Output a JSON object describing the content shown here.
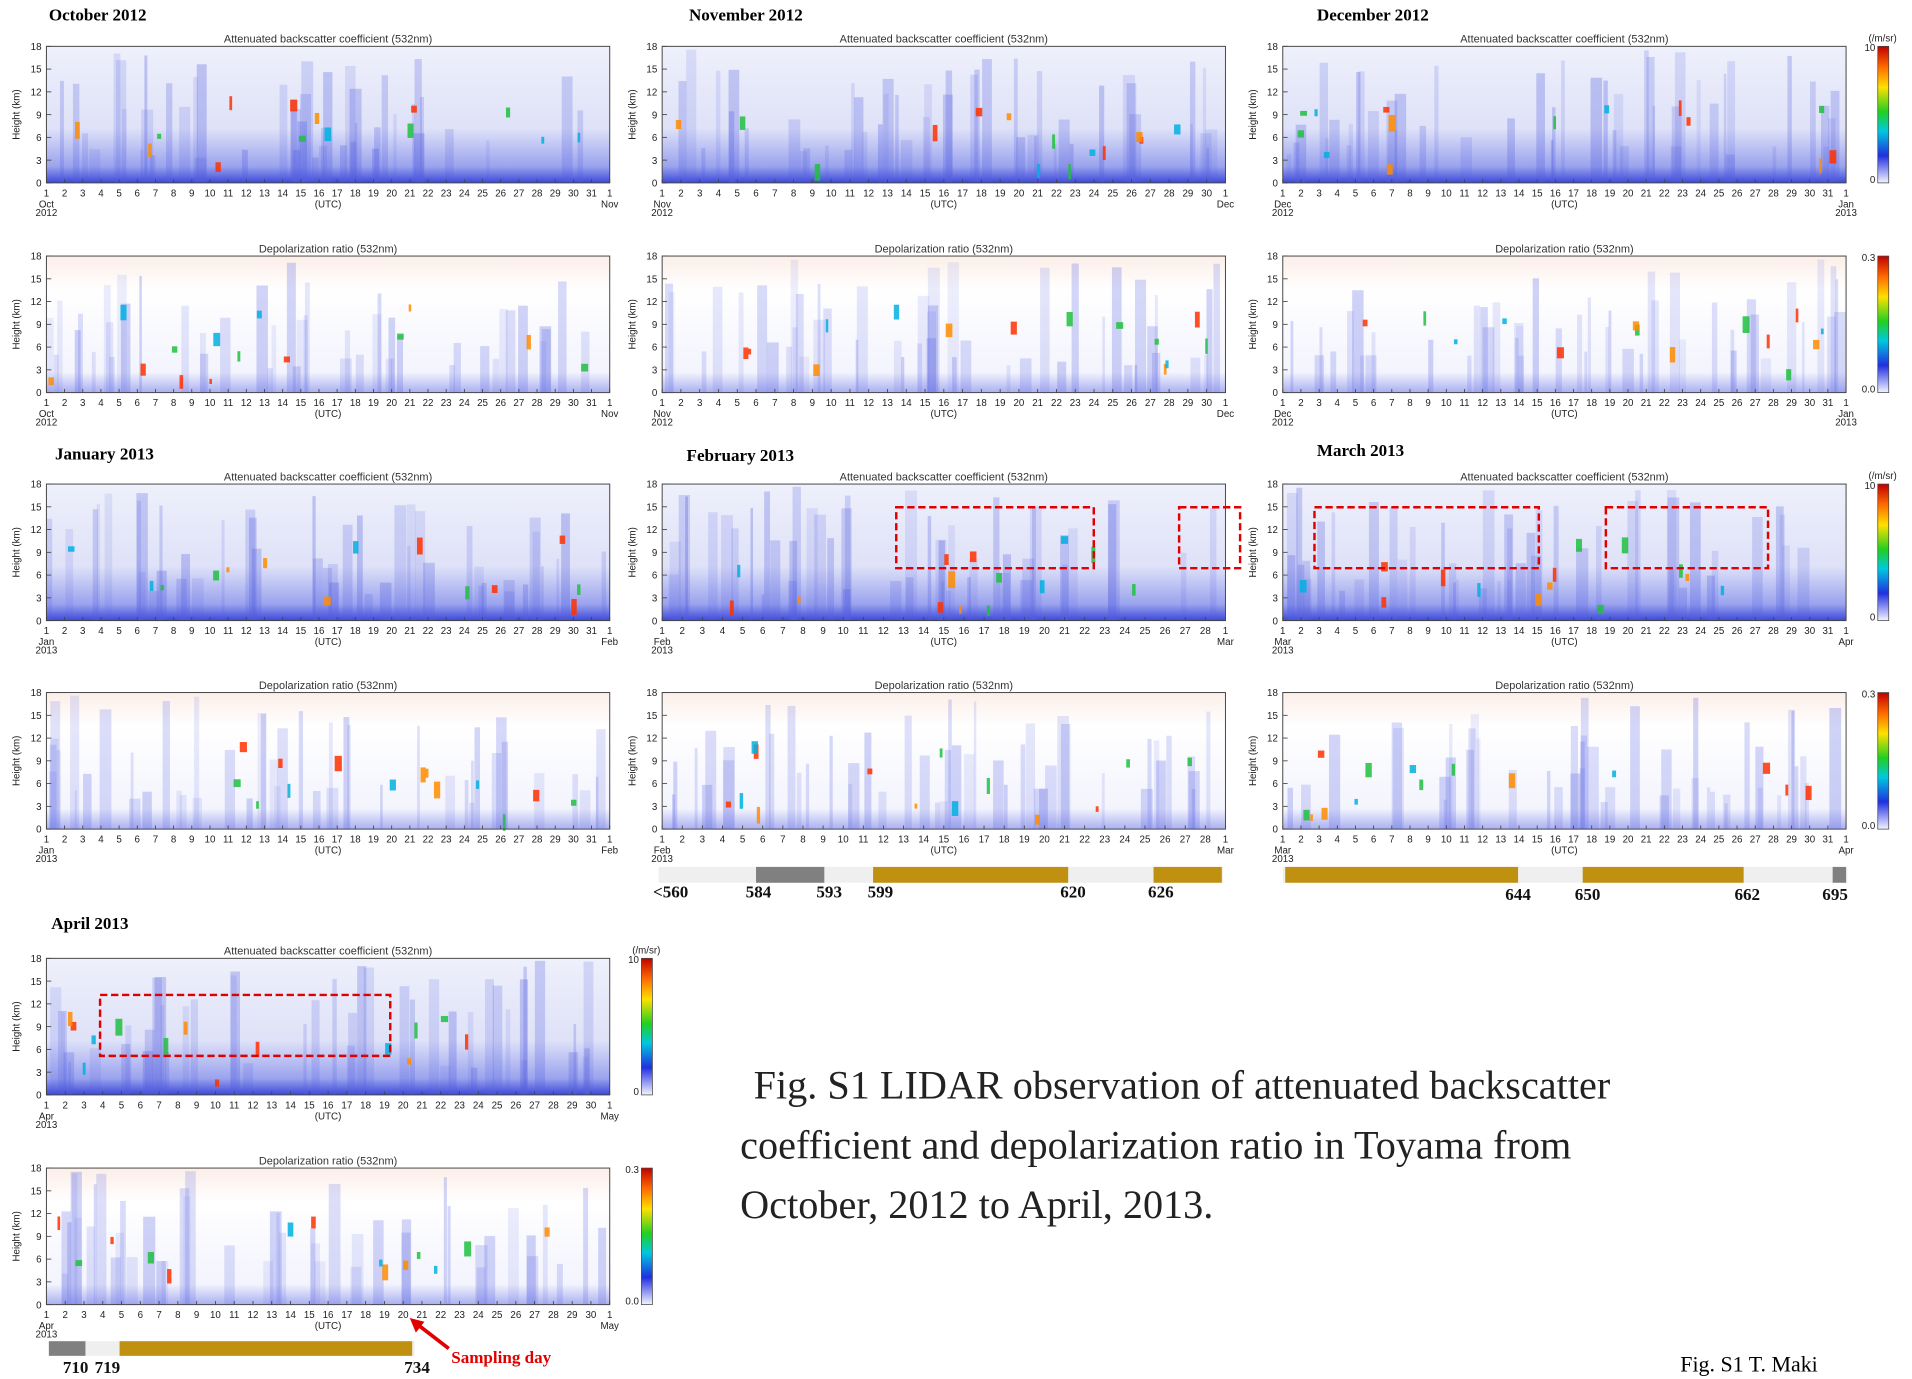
{
  "figure": {
    "shared": {
      "backscatter_title": "Attenuated backscatter coefficient (532nm)",
      "depol_title": "Depolarization ratio (532nm)",
      "y_label": "Height (km)",
      "y_ticks": [
        0,
        3,
        6,
        9,
        12,
        15,
        18
      ],
      "ylim": [
        0,
        18
      ],
      "x_label": "(UTC)",
      "backscatter_colorbar": {
        "top": "10",
        "unit": "(/m/sr)",
        "bottom": "0"
      },
      "depol_colorbar": {
        "top": "0.3",
        "bottom": "0.0"
      }
    },
    "panels": [
      {
        "title": "October 2012",
        "start_month": "Oct",
        "start_year": "2012",
        "end_month": "Nov",
        "days": [
          1,
          2,
          3,
          4,
          5,
          6,
          7,
          8,
          9,
          10,
          11,
          12,
          13,
          14,
          15,
          16,
          17,
          18,
          19,
          20,
          21,
          22,
          23,
          24,
          25,
          26,
          27,
          28,
          29,
          30,
          31,
          1
        ]
      },
      {
        "title": "November 2012",
        "start_month": "Nov",
        "start_year": "2012",
        "end_month": "Dec",
        "days": [
          1,
          2,
          3,
          4,
          5,
          6,
          7,
          8,
          9,
          10,
          11,
          12,
          13,
          14,
          15,
          16,
          17,
          18,
          19,
          20,
          21,
          22,
          23,
          24,
          25,
          26,
          27,
          28,
          29,
          30,
          1
        ]
      },
      {
        "title": "December 2012",
        "start_month": "Dec",
        "start_year": "2012",
        "end_month": "Jan",
        "end_year": "2013",
        "days": [
          1,
          2,
          3,
          4,
          5,
          6,
          7,
          8,
          9,
          10,
          11,
          12,
          13,
          14,
          15,
          16,
          17,
          18,
          19,
          20,
          21,
          22,
          23,
          24,
          25,
          26,
          27,
          28,
          29,
          30,
          31,
          1
        ]
      },
      {
        "title": "January 2013",
        "start_month": "Jan",
        "start_year": "2013",
        "end_month": "Feb",
        "days": [
          1,
          2,
          3,
          4,
          5,
          6,
          7,
          8,
          9,
          10,
          11,
          12,
          13,
          14,
          15,
          16,
          17,
          18,
          19,
          20,
          21,
          22,
          23,
          24,
          25,
          26,
          27,
          28,
          29,
          30,
          31,
          1
        ]
      },
      {
        "title": "February 2013",
        "start_month": "Feb",
        "start_year": "2013",
        "end_month": "Mar",
        "days": [
          1,
          2,
          3,
          4,
          5,
          6,
          7,
          8,
          9,
          10,
          11,
          12,
          13,
          14,
          15,
          16,
          17,
          18,
          19,
          20,
          21,
          22,
          23,
          24,
          25,
          26,
          27,
          28,
          1
        ],
        "sampling_labels": [
          "<560",
          "584",
          "593",
          "599",
          "620",
          "626"
        ]
      },
      {
        "title": "March 2013",
        "start_month": "Mar",
        "start_year": "2013",
        "end_month": "Apr",
        "days": [
          1,
          2,
          3,
          4,
          5,
          6,
          7,
          8,
          9,
          10,
          11,
          12,
          13,
          14,
          15,
          16,
          17,
          18,
          19,
          20,
          21,
          22,
          23,
          24,
          25,
          26,
          27,
          28,
          29,
          30,
          31,
          1
        ],
        "sampling_labels": [
          "644",
          "650",
          "662",
          "695"
        ]
      },
      {
        "title": "April 2013",
        "start_month": "Apr",
        "start_year": "2013",
        "end_month": "May",
        "days": [
          1,
          2,
          3,
          4,
          5,
          6,
          7,
          8,
          9,
          10,
          11,
          12,
          13,
          14,
          15,
          16,
          17,
          18,
          19,
          20,
          21,
          22,
          23,
          24,
          25,
          26,
          27,
          28,
          29,
          30,
          1
        ],
        "sampling_labels": [
          "710",
          "719",
          "734"
        ]
      }
    ],
    "sampling_day": "Sampling day",
    "caption": [
      "Fig. S1 LIDAR observation of attenuated backscatter",
      "coefficient and depolarization ratio in Toyama from",
      "October, 2012  to April, 2013."
    ],
    "credit": "Fig. S1 T. Maki"
  }
}
